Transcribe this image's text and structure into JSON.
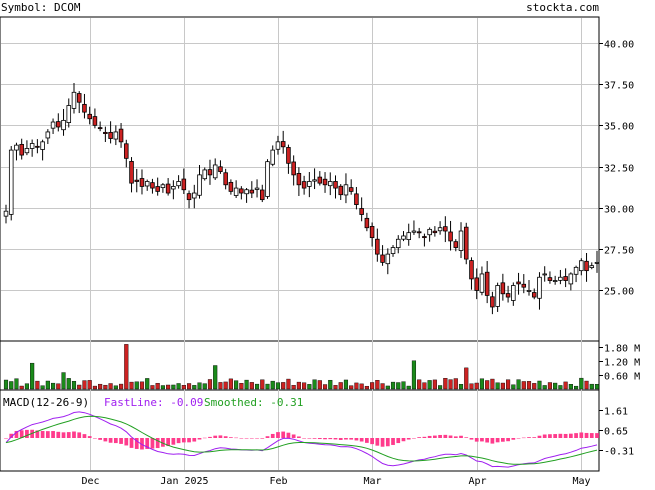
{
  "header": {
    "symbol_label": "Symbol: DCOM",
    "site": "stockta.com"
  },
  "colors": {
    "up_fill": "#ffffff",
    "down_fill": "#cc2222",
    "candle_stroke": "#000000",
    "volume_up": "#1a8a1a",
    "volume_down": "#cc2222",
    "fastline": "#a020f0",
    "smoothed": "#22a022",
    "histogram": "#ff3b8c",
    "grid": "#c8c8c8",
    "text": "#000000"
  },
  "chart_data": [
    {
      "type": "candlestick",
      "x_tick_labels": [
        "Dec",
        "Jan 2025",
        "Feb",
        "Mar",
        "Apr",
        "May"
      ],
      "y_tick_labels": [
        "40.00",
        "37.50",
        "35.00",
        "32.50",
        "30.00",
        "27.50",
        "25.00"
      ],
      "y_ticks": [
        40.0,
        37.5,
        35.0,
        32.5,
        30.0,
        27.5,
        25.0
      ],
      "ylim": [
        22.0,
        41.5
      ],
      "grid": true,
      "close": [
        29.8,
        33.5,
        33.8,
        33.2,
        33.6,
        33.9,
        33.7,
        34.0,
        34.6,
        35.2,
        34.9,
        35.3,
        36.2,
        37.0,
        36.4,
        35.8,
        35.4,
        35.0,
        34.8,
        34.5,
        34.2,
        34.6,
        34.0,
        33.0,
        31.5,
        31.6,
        31.3,
        31.6,
        31.2,
        31.0,
        31.4,
        30.9,
        31.3,
        31.6,
        31.1,
        30.5,
        30.9,
        32.0,
        32.3,
        32.0,
        32.6,
        32.2,
        31.4,
        31.0,
        31.2,
        30.9,
        31.1,
        30.9,
        31.2,
        30.5,
        32.8,
        33.5,
        34.0,
        33.7,
        32.7,
        32.0,
        31.4,
        31.2,
        31.6,
        31.7,
        31.5,
        31.4,
        31.6,
        31.2,
        30.8,
        31.4,
        31.0,
        30.2,
        29.6,
        28.8,
        28.2,
        27.2,
        26.7,
        27.2,
        27.6,
        28.1,
        28.3,
        28.5,
        28.6,
        28.5,
        28.2,
        28.7,
        28.5,
        28.8,
        28.6,
        28.0,
        27.6,
        28.6,
        26.9,
        25.7,
        25.0,
        26.0,
        24.7,
        24.0,
        25.3,
        24.8,
        24.6,
        25.3,
        25.4,
        25.2,
        25.0,
        24.6,
        25.8,
        26.0,
        25.6,
        25.6,
        25.8,
        25.6,
        26.0,
        26.4,
        26.8,
        26.2,
        26.5,
        26.7
      ],
      "volume_ticks": [
        "1.80 M",
        "1.20 M",
        "0.60 M"
      ]
    },
    {
      "type": "line",
      "title": "MACD(12-26-9)",
      "series": [
        {
          "name": "FastLine",
          "latest": "-0.09"
        },
        {
          "name": "Smoothed",
          "latest": "-0.31"
        }
      ],
      "y_tick_labels": [
        "1.61",
        "0.65",
        "-0.31"
      ]
    }
  ]
}
